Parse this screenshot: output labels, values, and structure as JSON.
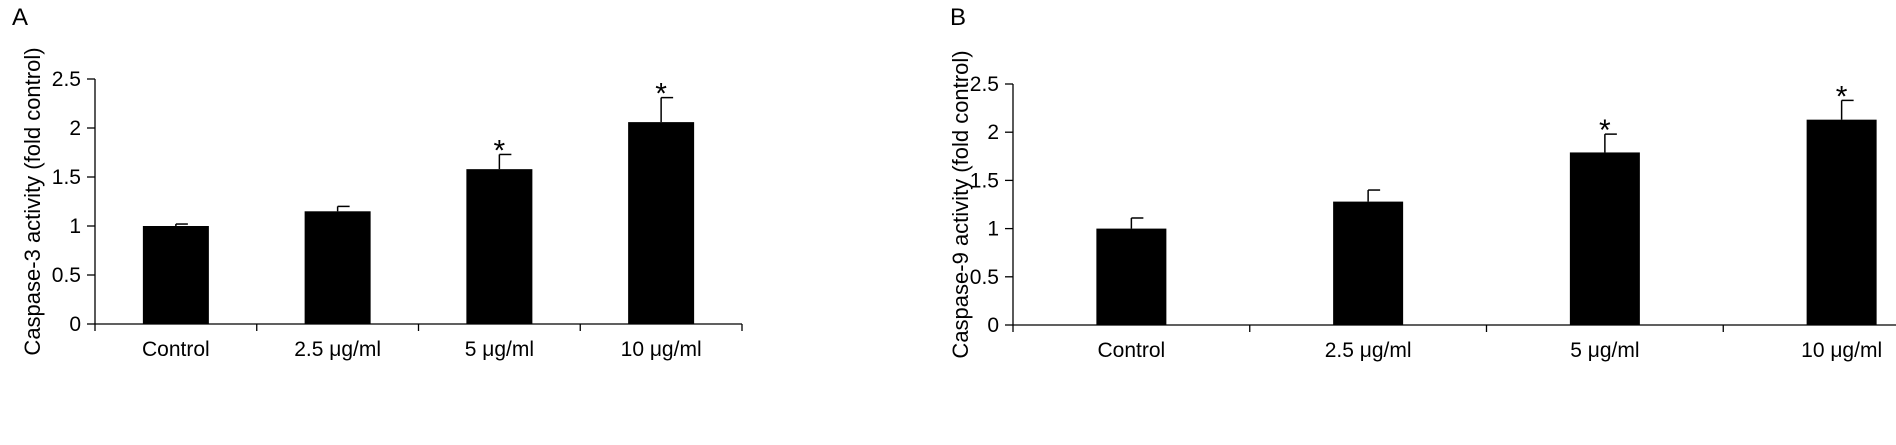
{
  "figure": {
    "panels": [
      {
        "letter": "A"
      },
      {
        "letter": "B"
      }
    ]
  },
  "chart_data": [
    {
      "type": "bar",
      "panel": "A",
      "categories": [
        "Control",
        "2.5 μg/ml",
        "5 μg/ml",
        "10 μg/ml"
      ],
      "values": [
        1.0,
        1.15,
        1.58,
        2.06
      ],
      "error": [
        0.02,
        0.05,
        0.15,
        0.25
      ],
      "significance": [
        "",
        "",
        "*",
        "*"
      ],
      "ylabel": "Caspase-3 activity (fold control)",
      "xlabel": "",
      "ylim": [
        0,
        2.5
      ],
      "yticks": [
        0,
        0.5,
        1,
        1.5,
        2,
        2.5
      ],
      "ytick_labels": [
        "0",
        "0.5",
        "1",
        "1.5",
        "2",
        "2.5"
      ],
      "bar_color": "#000000",
      "grid": false
    },
    {
      "type": "bar",
      "panel": "B",
      "categories": [
        "Control",
        "2.5 μg/ml",
        "5 μg/ml",
        "10 μg/ml"
      ],
      "values": [
        1.0,
        1.28,
        1.79,
        2.13
      ],
      "error": [
        0.11,
        0.12,
        0.19,
        0.2
      ],
      "significance": [
        "",
        "",
        "*",
        "*"
      ],
      "ylabel": "Caspase-9 activity (fold control)",
      "xlabel": "",
      "ylim": [
        0,
        2.5
      ],
      "yticks": [
        0,
        0.5,
        1,
        1.5,
        2,
        2.5
      ],
      "ytick_labels": [
        "0",
        "0.5",
        "1",
        "1.5",
        "2",
        "2.5"
      ],
      "bar_color": "#000000",
      "grid": false
    }
  ]
}
